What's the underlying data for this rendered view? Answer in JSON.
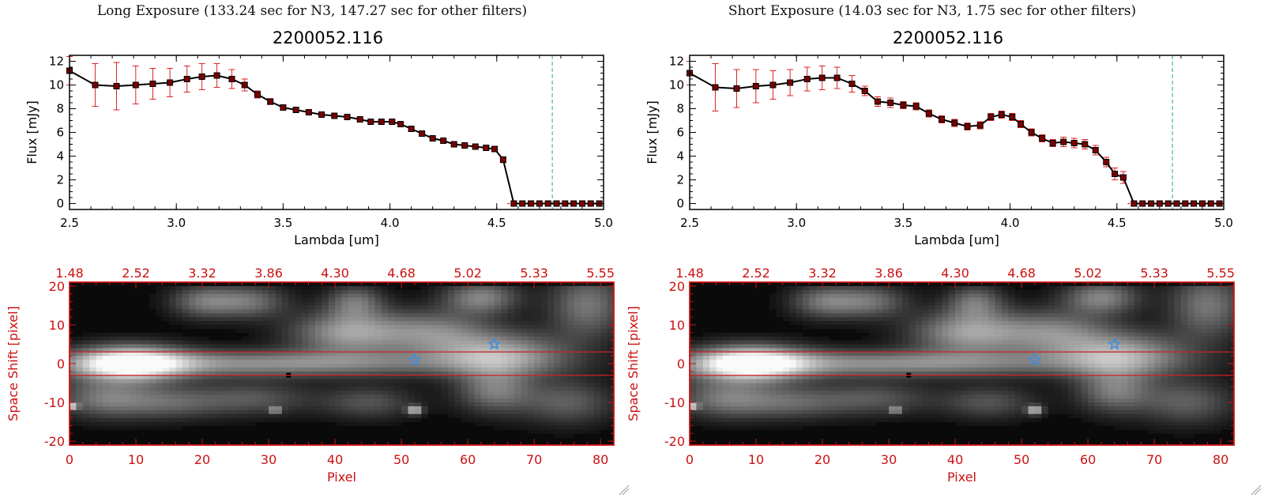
{
  "figure": {
    "left_header": "Long Exposure (133.24 sec for N3, 147.27 sec for other filters)",
    "right_header": "Short Exposure (14.03 sec for N3, 1.75 sec for other filters)",
    "left_title": "2200052.116",
    "right_title": "2200052.116"
  },
  "colors": {
    "red_axis": "#cc1111",
    "spectrum_line": "#000000",
    "error_bar": "#dd2222",
    "marker_fill": "#7a0000",
    "cutoff_line": "#2aa6a0",
    "star": "#3a8fe0",
    "region_line": "#cc2222"
  },
  "chart_data": [
    {
      "type": "line",
      "panel": "long-exposure-spectrum",
      "title": "2200052.116",
      "xlabel": "Lambda [um]",
      "ylabel": "Flux [mJy]",
      "xlim": [
        2.5,
        5.0
      ],
      "ylim": [
        -0.5,
        12.5
      ],
      "xticks": [
        "2.5",
        "3.0",
        "3.5",
        "4.0",
        "4.5",
        "5.0"
      ],
      "yticks": [
        "0",
        "2",
        "4",
        "6",
        "8",
        "10",
        "12"
      ],
      "cutoff_x": 4.76,
      "x": [
        2.5,
        2.62,
        2.72,
        2.81,
        2.89,
        2.97,
        3.05,
        3.12,
        3.19,
        3.26,
        3.32,
        3.38,
        3.44,
        3.5,
        3.56,
        3.62,
        3.68,
        3.74,
        3.8,
        3.86,
        3.91,
        3.96,
        4.01,
        4.05,
        4.1,
        4.15,
        4.2,
        4.25,
        4.3,
        4.35,
        4.4,
        4.45,
        4.49,
        4.53,
        4.58,
        4.62,
        4.66,
        4.7,
        4.74,
        4.78,
        4.82,
        4.86,
        4.9,
        4.94,
        4.98
      ],
      "y": [
        11.2,
        10.0,
        9.9,
        10.0,
        10.1,
        10.2,
        10.5,
        10.7,
        10.8,
        10.5,
        10.0,
        9.2,
        8.6,
        8.1,
        7.9,
        7.7,
        7.5,
        7.4,
        7.3,
        7.1,
        6.9,
        6.9,
        6.9,
        6.7,
        6.3,
        5.9,
        5.5,
        5.3,
        5.0,
        4.9,
        4.8,
        4.7,
        4.6,
        3.7,
        0,
        0,
        0,
        0,
        0,
        0,
        0,
        0,
        0,
        0,
        0
      ],
      "yerr": [
        1.2,
        1.8,
        2.0,
        1.6,
        1.3,
        1.2,
        1.1,
        1.1,
        1.0,
        0.8,
        0.5,
        0.3,
        0.25,
        0.2,
        0.15,
        0.15,
        0.12,
        0.12,
        0.12,
        0.12,
        0.12,
        0.12,
        0.12,
        0.12,
        0.12,
        0.12,
        0.12,
        0.12,
        0.12,
        0.12,
        0.12,
        0.15,
        0.2,
        0.25,
        0,
        0,
        0,
        0,
        0,
        0,
        0,
        0,
        0,
        0,
        0
      ]
    },
    {
      "type": "line",
      "panel": "short-exposure-spectrum",
      "title": "2200052.116",
      "xlabel": "Lambda [um]",
      "ylabel": "Flux [mJy]",
      "xlim": [
        2.5,
        5.0
      ],
      "ylim": [
        -0.5,
        12.5
      ],
      "xticks": [
        "2.5",
        "3.0",
        "3.5",
        "4.0",
        "4.5",
        "5.0"
      ],
      "yticks": [
        "0",
        "2",
        "4",
        "6",
        "8",
        "10",
        "12"
      ],
      "cutoff_x": 4.76,
      "x": [
        2.5,
        2.62,
        2.72,
        2.81,
        2.89,
        2.97,
        3.05,
        3.12,
        3.19,
        3.26,
        3.32,
        3.38,
        3.44,
        3.5,
        3.56,
        3.62,
        3.68,
        3.74,
        3.8,
        3.86,
        3.91,
        3.96,
        4.01,
        4.05,
        4.1,
        4.15,
        4.2,
        4.25,
        4.3,
        4.35,
        4.4,
        4.45,
        4.49,
        4.53,
        4.58,
        4.62,
        4.66,
        4.7,
        4.74,
        4.78,
        4.82,
        4.86,
        4.9,
        4.94,
        4.98
      ],
      "y": [
        11.0,
        9.8,
        9.7,
        9.9,
        10.0,
        10.2,
        10.5,
        10.6,
        10.6,
        10.1,
        9.5,
        8.6,
        8.5,
        8.3,
        8.2,
        7.6,
        7.1,
        6.8,
        6.5,
        6.6,
        7.3,
        7.5,
        7.3,
        6.7,
        6.0,
        5.5,
        5.1,
        5.2,
        5.1,
        5.0,
        4.5,
        3.5,
        2.5,
        2.2,
        0,
        0,
        0,
        0,
        0,
        0,
        0,
        0,
        0,
        0,
        0
      ],
      "yerr": [
        1.0,
        2.0,
        1.6,
        1.4,
        1.2,
        1.1,
        1.0,
        1.0,
        0.9,
        0.7,
        0.4,
        0.4,
        0.4,
        0.3,
        0.3,
        0.3,
        0.3,
        0.3,
        0.3,
        0.3,
        0.3,
        0.3,
        0.3,
        0.3,
        0.3,
        0.3,
        0.3,
        0.4,
        0.4,
        0.4,
        0.4,
        0.4,
        0.5,
        0.5,
        0,
        0,
        0,
        0,
        0,
        0,
        0,
        0,
        0,
        0,
        0
      ]
    },
    {
      "type": "heatmap",
      "panel": "long-exposure-image",
      "xlabel": "Pixel",
      "ylabel": "Space Shift [pixel]",
      "xlim": [
        0,
        82
      ],
      "ylim": [
        -21,
        21
      ],
      "xticks": [
        "0",
        "10",
        "20",
        "30",
        "40",
        "50",
        "60",
        "70",
        "80"
      ],
      "yticks": [
        "-20",
        "-10",
        "0",
        "10",
        "20"
      ],
      "top_ticks": [
        "1.48",
        "2.52",
        "3.32",
        "3.86",
        "4.30",
        "4.68",
        "5.02",
        "5.33",
        "5.55"
      ],
      "region_lines": [
        3,
        -3
      ],
      "stars": [
        {
          "x": 52,
          "y": 1
        },
        {
          "x": 64,
          "y": 5
        }
      ],
      "blobs": [
        {
          "x": 9,
          "y": 0,
          "sx": 6,
          "sy": 3.2,
          "a": 1.0
        },
        {
          "x": 30,
          "y": 0,
          "sx": 22,
          "sy": 2.4,
          "a": 0.55
        },
        {
          "x": 65,
          "y": 2.5,
          "sx": 7,
          "sy": 4,
          "a": 0.6
        },
        {
          "x": 20,
          "y": 16,
          "sx": 3.5,
          "sy": 3,
          "a": 0.4
        },
        {
          "x": 27,
          "y": 16,
          "sx": 4,
          "sy": 3,
          "a": 0.42
        },
        {
          "x": 43,
          "y": 16,
          "sx": 3,
          "sy": 3,
          "a": 0.4
        },
        {
          "x": 62,
          "y": 17,
          "sx": 4,
          "sy": 3,
          "a": 0.5
        },
        {
          "x": 78,
          "y": 15,
          "sx": 4,
          "sy": 6,
          "a": 0.45
        },
        {
          "x": 42,
          "y": 8,
          "sx": 6,
          "sy": 4,
          "a": 0.6
        },
        {
          "x": 55,
          "y": 8,
          "sx": 6,
          "sy": 4,
          "a": 0.45
        },
        {
          "x": 5,
          "y": -9,
          "sx": 5,
          "sy": 3.5,
          "a": 0.4
        },
        {
          "x": 15,
          "y": -10,
          "sx": 6,
          "sy": 3,
          "a": 0.35
        },
        {
          "x": 28,
          "y": -9,
          "sx": 6,
          "sy": 3,
          "a": 0.3
        },
        {
          "x": 45,
          "y": -10,
          "sx": 5,
          "sy": 3,
          "a": 0.3
        },
        {
          "x": 64,
          "y": -7,
          "sx": 4,
          "sy": 4,
          "a": 0.45
        },
        {
          "x": 75,
          "y": -10,
          "sx": 5,
          "sy": 4,
          "a": 0.35
        },
        {
          "x": 52,
          "y": -12,
          "sx": 0.8,
          "sy": 0.8,
          "a": 0.75
        },
        {
          "x": 31,
          "y": -12,
          "sx": 0.6,
          "sy": 0.6,
          "a": 0.6
        },
        {
          "x": 0.5,
          "y": -11,
          "sx": 0.6,
          "sy": 0.6,
          "a": 0.7
        }
      ],
      "dark_marks": [
        {
          "x": 33,
          "y": -3
        }
      ]
    },
    {
      "type": "heatmap",
      "panel": "short-exposure-image",
      "xlabel": "Pixel",
      "ylabel": "Space Shift [pixel]",
      "xlim": [
        0,
        82
      ],
      "ylim": [
        -21,
        21
      ],
      "xticks": [
        "0",
        "10",
        "20",
        "30",
        "40",
        "50",
        "60",
        "70",
        "80"
      ],
      "yticks": [
        "-20",
        "-10",
        "0",
        "10",
        "20"
      ],
      "top_ticks": [
        "1.48",
        "2.52",
        "3.32",
        "3.86",
        "4.30",
        "4.68",
        "5.02",
        "5.33",
        "5.55"
      ],
      "region_lines": [
        3,
        -3
      ],
      "stars": [
        {
          "x": 52,
          "y": 1
        },
        {
          "x": 64,
          "y": 5
        }
      ],
      "blobs": [
        {
          "x": 9,
          "y": 0,
          "sx": 6,
          "sy": 3.2,
          "a": 1.0
        },
        {
          "x": 30,
          "y": 0,
          "sx": 22,
          "sy": 2.4,
          "a": 0.55
        },
        {
          "x": 65,
          "y": 2.5,
          "sx": 7,
          "sy": 4,
          "a": 0.6
        },
        {
          "x": 20,
          "y": 16,
          "sx": 3.5,
          "sy": 3,
          "a": 0.4
        },
        {
          "x": 27,
          "y": 16,
          "sx": 4,
          "sy": 3,
          "a": 0.42
        },
        {
          "x": 43,
          "y": 16,
          "sx": 3,
          "sy": 3,
          "a": 0.4
        },
        {
          "x": 62,
          "y": 17,
          "sx": 4,
          "sy": 3,
          "a": 0.5
        },
        {
          "x": 78,
          "y": 15,
          "sx": 4,
          "sy": 6,
          "a": 0.45
        },
        {
          "x": 42,
          "y": 8,
          "sx": 6,
          "sy": 4,
          "a": 0.6
        },
        {
          "x": 55,
          "y": 8,
          "sx": 6,
          "sy": 4,
          "a": 0.45
        },
        {
          "x": 5,
          "y": -9,
          "sx": 5,
          "sy": 3.5,
          "a": 0.4
        },
        {
          "x": 15,
          "y": -10,
          "sx": 6,
          "sy": 3,
          "a": 0.35
        },
        {
          "x": 28,
          "y": -9,
          "sx": 6,
          "sy": 3,
          "a": 0.3
        },
        {
          "x": 45,
          "y": -10,
          "sx": 5,
          "sy": 3,
          "a": 0.3
        },
        {
          "x": 64,
          "y": -7,
          "sx": 4,
          "sy": 4,
          "a": 0.45
        },
        {
          "x": 75,
          "y": -10,
          "sx": 5,
          "sy": 4,
          "a": 0.35
        },
        {
          "x": 52,
          "y": -12,
          "sx": 0.8,
          "sy": 0.8,
          "a": 0.75
        },
        {
          "x": 31,
          "y": -12,
          "sx": 0.6,
          "sy": 0.6,
          "a": 0.6
        },
        {
          "x": 0.5,
          "y": -11,
          "sx": 0.6,
          "sy": 0.6,
          "a": 0.7
        }
      ],
      "dark_marks": [
        {
          "x": 33,
          "y": -3
        }
      ]
    }
  ]
}
